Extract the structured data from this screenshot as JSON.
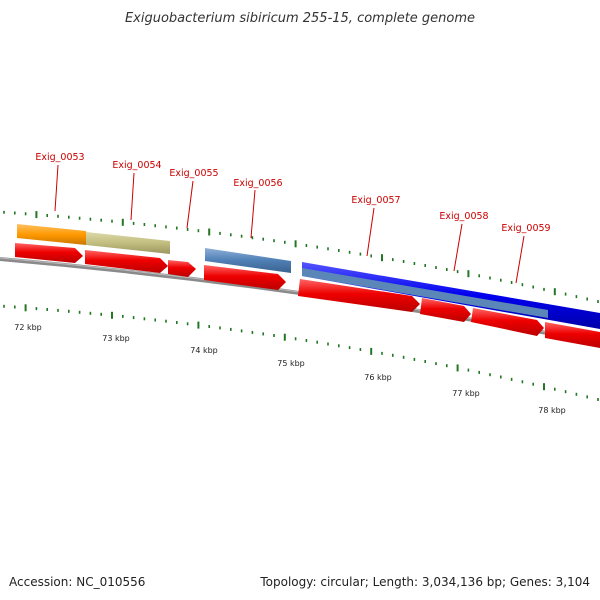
{
  "title": "Exiguobacterium sibiricum 255-15, complete genome",
  "footer": {
    "accession": "Accession: NC_010556",
    "summary": "Topology: circular; Length: 3,034,136 bp; Genes: 3,104"
  },
  "colors": {
    "cds": "#ee0000",
    "backbone": "#808080",
    "tick": "#227722",
    "label": "#cc0000",
    "orange": "#ff9900",
    "olive": "#c2bd7f",
    "steel": "#4f7fb5",
    "blue": "#0000ee"
  },
  "gene_labels": [
    "Exig_0053",
    "Exig_0054",
    "Exig_0055",
    "Exig_0056",
    "Exig_0057",
    "Exig_0058",
    "Exig_0059"
  ],
  "kbp_labels": [
    "72 kbp",
    "73 kbp",
    "74 kbp",
    "75 kbp",
    "76 kbp",
    "77 kbp",
    "78 kbp"
  ]
}
